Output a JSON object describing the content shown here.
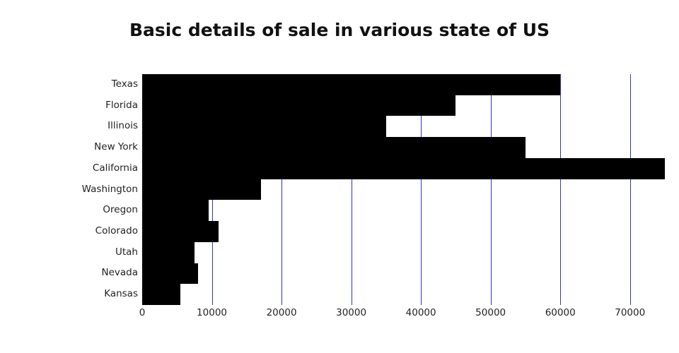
{
  "title": "Basic details of sale in various state of US",
  "chart_data": {
    "type": "bar",
    "orientation": "horizontal",
    "title": "Basic details of sale in various state of US",
    "categories": [
      "Texas",
      "Florida",
      "Illinois",
      "New York",
      "California",
      "Washington",
      "Oregon",
      "Colorado",
      "Utah",
      "Nevada",
      "Kansas"
    ],
    "values": [
      60000,
      45000,
      35000,
      55000,
      75000,
      17000,
      9500,
      11000,
      7500,
      8000,
      5500
    ],
    "xlabel": "",
    "ylabel": "",
    "xlim": [
      0,
      75000
    ],
    "xticks": [
      0,
      10000,
      20000,
      30000,
      40000,
      50000,
      60000,
      70000
    ],
    "grid": true,
    "legend": "none",
    "bar_color": "#000000",
    "gridline_color": "#3333cc",
    "background": "#ffffff"
  }
}
